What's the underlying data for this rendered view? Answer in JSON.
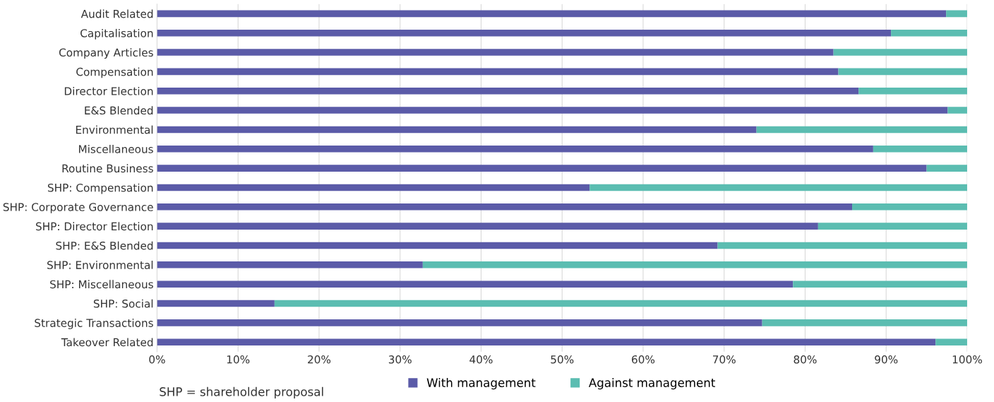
{
  "chart_data": {
    "type": "bar",
    "orientation": "horizontal",
    "stacked": true,
    "categories": [
      "Audit Related",
      "Capitalisation",
      "Company Articles",
      "Compensation",
      "Director Election",
      "E&S Blended",
      "Environmental",
      "Miscellaneous",
      "Routine Business",
      "SHP: Compensation",
      "SHP: Corporate Governance",
      "SHP: Director Election",
      "SHP: E&S Blended",
      "SHP: Environmental",
      "SHP: Miscellaneous",
      "SHP: Social",
      "Strategic Transactions",
      "Takeover Related"
    ],
    "series": [
      {
        "name": "With management",
        "color": "#5b5ba8",
        "values": [
          97.4,
          90.6,
          83.5,
          84.1,
          86.6,
          97.6,
          74.0,
          88.4,
          95.0,
          53.4,
          85.8,
          81.6,
          69.2,
          32.8,
          78.5,
          14.5,
          74.7,
          96.1
        ]
      },
      {
        "name": "Against management",
        "color": "#5bbdb1",
        "values": [
          2.6,
          9.4,
          16.5,
          15.9,
          13.4,
          2.4,
          26.0,
          11.6,
          5.0,
          46.6,
          14.2,
          18.4,
          30.8,
          67.2,
          21.5,
          85.5,
          25.3,
          3.9
        ]
      }
    ],
    "xlim": [
      0,
      100
    ],
    "xticks": [
      {
        "value": 0,
        "label": "0%"
      },
      {
        "value": 10,
        "label": "10%"
      },
      {
        "value": 20,
        "label": "20%"
      },
      {
        "value": 30,
        "label": "30%"
      },
      {
        "value": 40,
        "label": "40%"
      },
      {
        "value": 50,
        "label": "50%"
      },
      {
        "value": 60,
        "label": "60%"
      },
      {
        "value": 70,
        "label": "70%"
      },
      {
        "value": 80,
        "label": "80%"
      },
      {
        "value": 90,
        "label": "90%"
      },
      {
        "value": 100,
        "label": "100%"
      }
    ],
    "grid": "x",
    "legend": "bottom",
    "annotations": [
      "SHP = shareholder proposal"
    ]
  }
}
